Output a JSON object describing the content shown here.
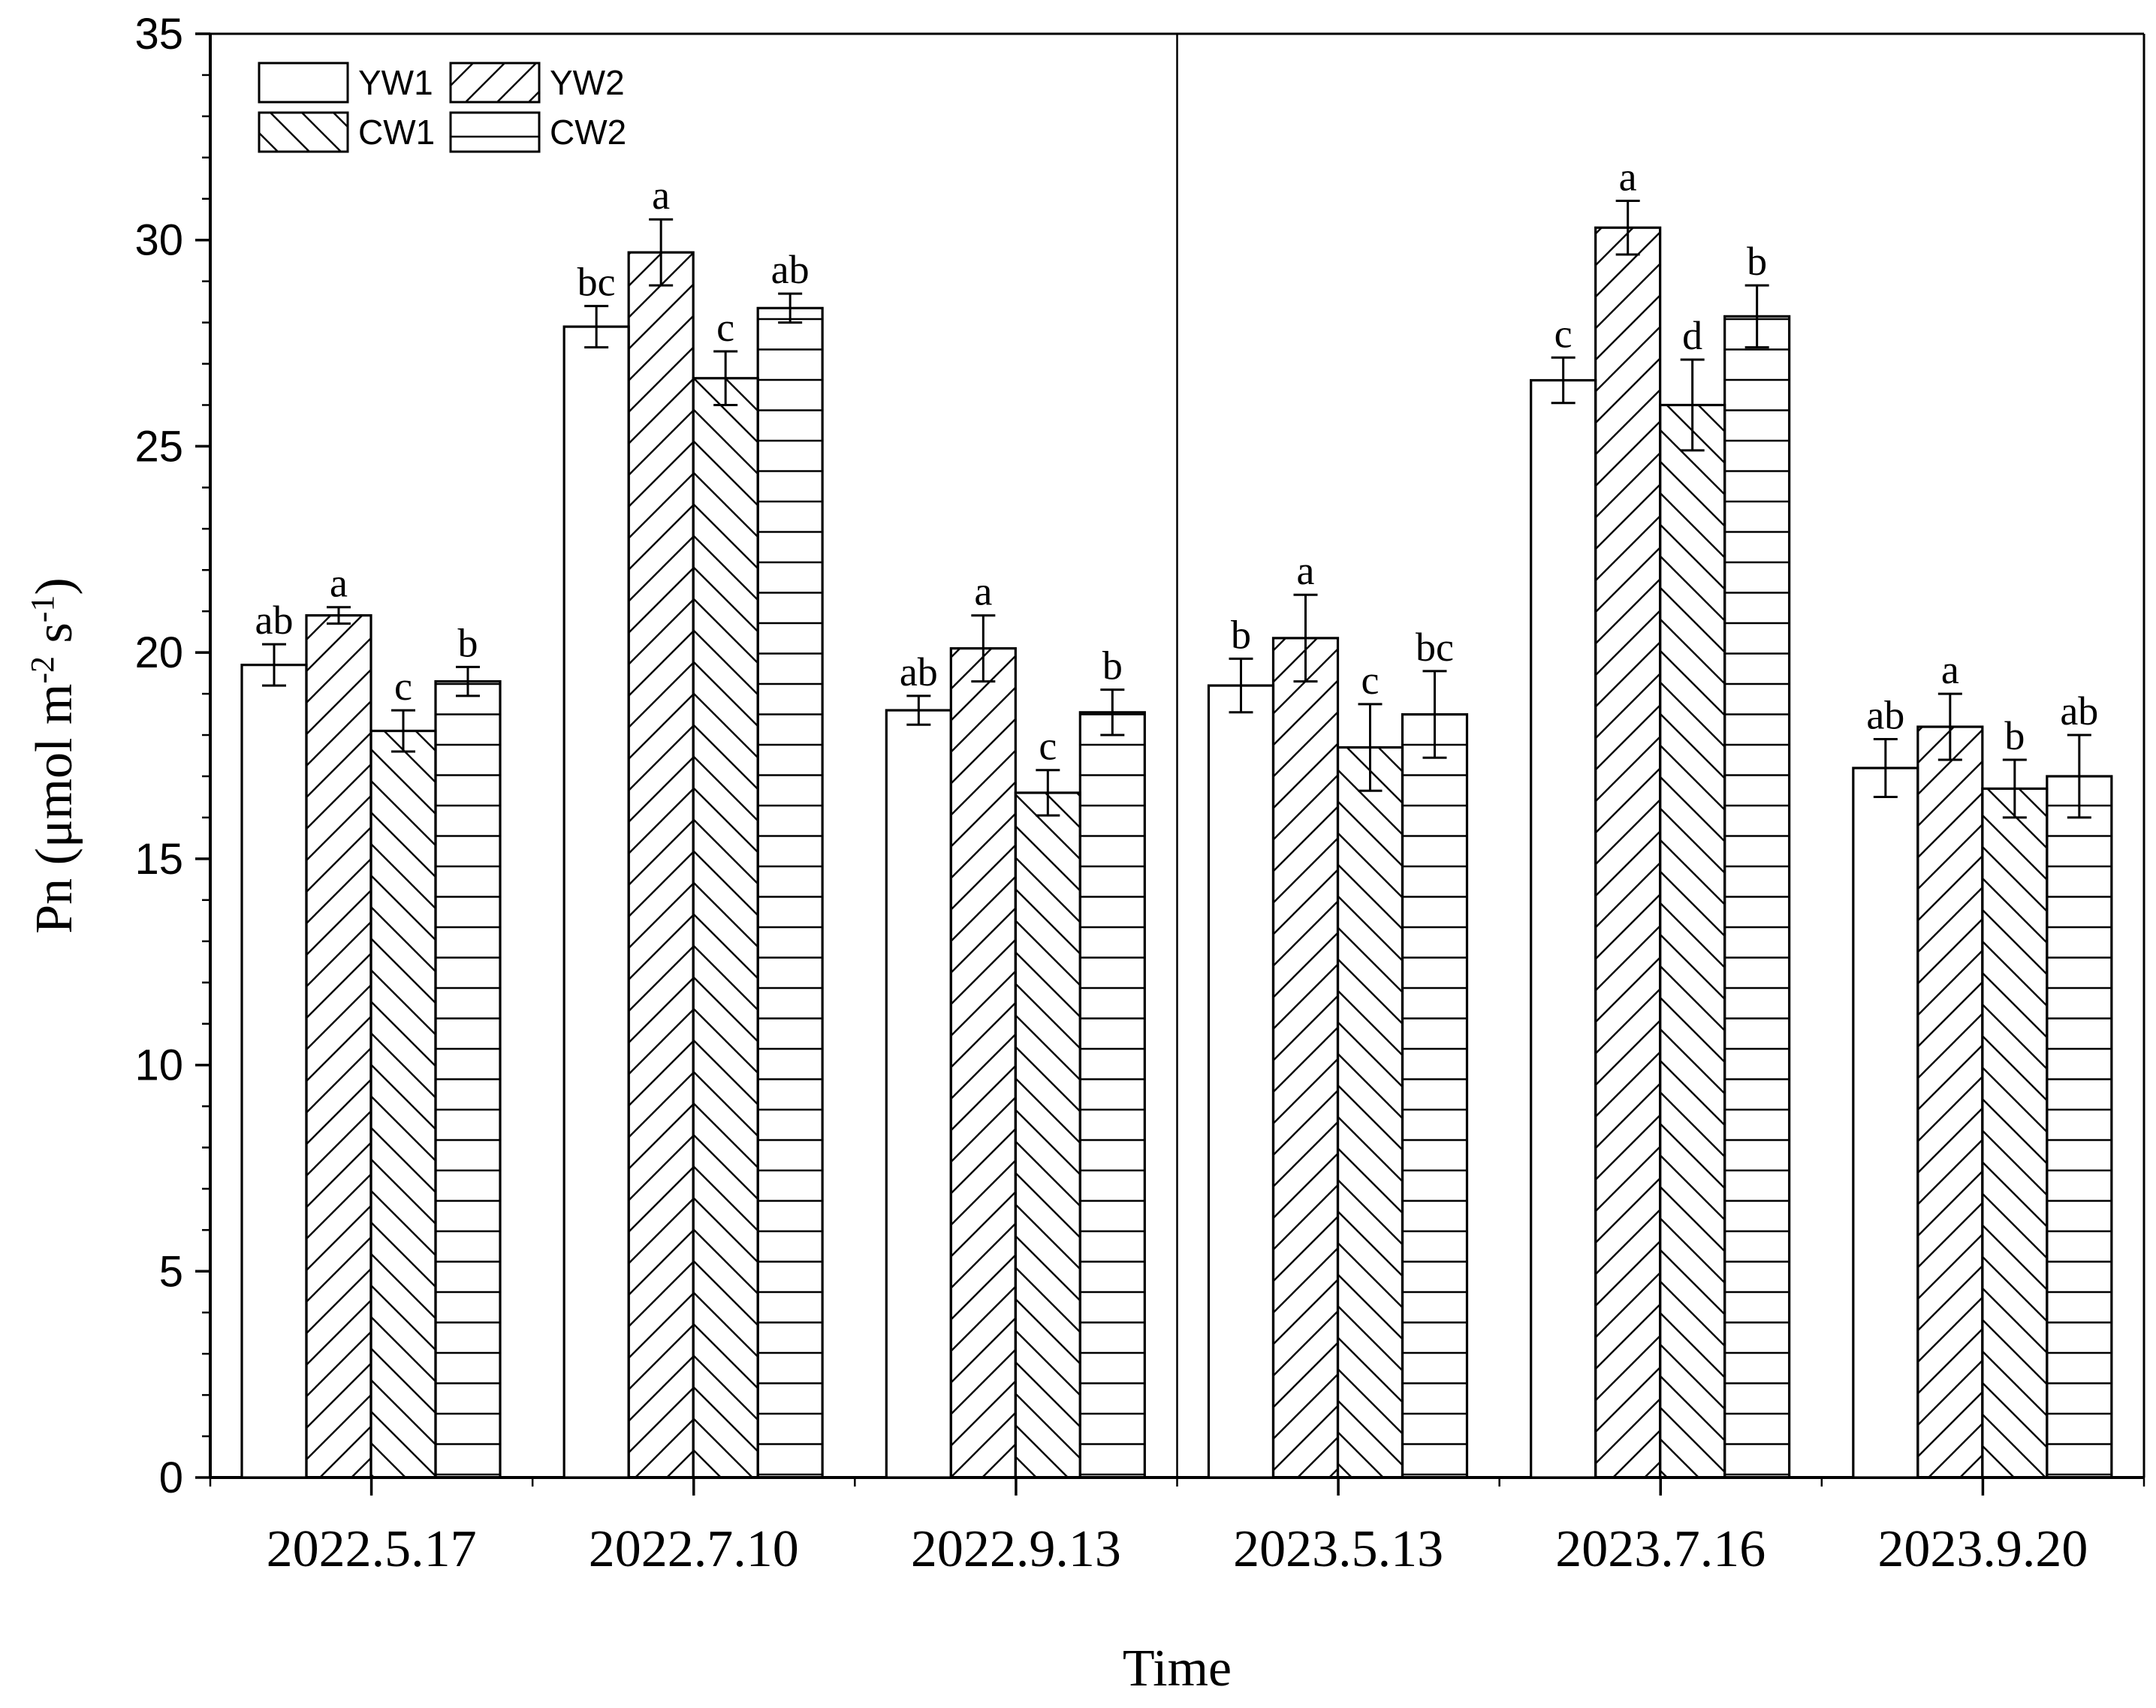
{
  "chart_data": {
    "type": "bar",
    "title": "",
    "xlabel": "Time",
    "ylabel": {
      "prefix": "Pn (μmol m",
      "sup1": "-2",
      "mid": " s",
      "sup2": "-1",
      "suffix": ")"
    },
    "ylim": [
      0,
      35
    ],
    "yticks": [
      0,
      5,
      10,
      15,
      20,
      25,
      30,
      35
    ],
    "categories": [
      "2022.5.17",
      "2022.7.10",
      "2022.9.13",
      "2023.5.13",
      "2023.7.16",
      "2023.9.20"
    ],
    "series": [
      {
        "name": "YW1",
        "pattern": "none",
        "values": [
          19.7,
          27.9,
          18.6,
          19.2,
          26.6,
          17.2
        ],
        "errors": [
          0.5,
          0.5,
          0.35,
          0.65,
          0.55,
          0.7
        ],
        "labels": [
          "ab",
          "bc",
          "ab",
          "b",
          "c",
          "ab"
        ]
      },
      {
        "name": "YW2",
        "pattern": "diag-right",
        "values": [
          20.9,
          29.7,
          20.1,
          20.35,
          30.3,
          18.2
        ],
        "errors": [
          0.2,
          0.8,
          0.8,
          1.05,
          0.65,
          0.8
        ],
        "labels": [
          "a",
          "a",
          "a",
          "a",
          "a",
          "a"
        ]
      },
      {
        "name": "CW1",
        "pattern": "diag-left",
        "values": [
          18.1,
          26.65,
          16.6,
          17.7,
          26.0,
          16.7
        ],
        "errors": [
          0.5,
          0.65,
          0.55,
          1.05,
          1.1,
          0.7
        ],
        "labels": [
          "c",
          "c",
          "c",
          "c",
          "d",
          "b"
        ]
      },
      {
        "name": "CW2",
        "pattern": "horizontal",
        "values": [
          19.3,
          28.35,
          18.55,
          18.5,
          28.15,
          17.0
        ],
        "errors": [
          0.35,
          0.35,
          0.55,
          1.05,
          0.75,
          1.0
        ],
        "labels": [
          "b",
          "ab",
          "b",
          "bc",
          "b",
          "ab"
        ]
      }
    ],
    "legend": {
      "position": "top-left",
      "columns": 2
    },
    "grid": false,
    "separator_between_years": true
  }
}
